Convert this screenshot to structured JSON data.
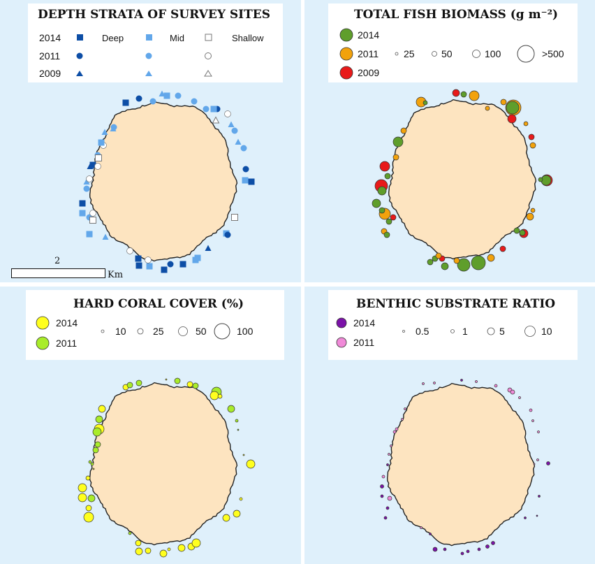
{
  "colors": {
    "water": "#dff0fb",
    "land": "#fde4c0",
    "coast": "#222222",
    "deep": "#0d4ea6",
    "mid": "#62a7ea",
    "shallow": "#ffffff",
    "y2014_fish": "#5f9e2b",
    "y2011_fish": "#f2a20c",
    "y2009_fish": "#e81a1a",
    "y2014_coral": "#ffff1e",
    "y2011_coral": "#a9ec2a",
    "y2014_benthic": "#7b12a8",
    "y2011_benthic": "#f08ad8"
  },
  "depth": {
    "title": "DEPTH STRATA OF SURVEY SITES",
    "years": [
      "2014",
      "2011",
      "2009"
    ],
    "strata": [
      "Deep",
      "Mid",
      "Shallow"
    ],
    "scale_value": "2",
    "scale_unit": "Km"
  },
  "fish": {
    "title": "TOTAL FISH BIOMASS",
    "unit": "(g m⁻²)",
    "years": [
      "2014",
      "2011",
      "2009"
    ],
    "size_labels": [
      "25",
      "50",
      "100",
      ">500"
    ]
  },
  "coral": {
    "title": "HARD CORAL COVER (%)",
    "years": [
      "2014",
      "2011"
    ],
    "size_labels": [
      "10",
      "25",
      "50",
      "100"
    ]
  },
  "benthic": {
    "title": "BENTHIC SUBSTRATE RATIO",
    "years": [
      "2014",
      "2011"
    ],
    "size_labels": [
      "0.5",
      "1",
      "5",
      "10"
    ]
  }
}
